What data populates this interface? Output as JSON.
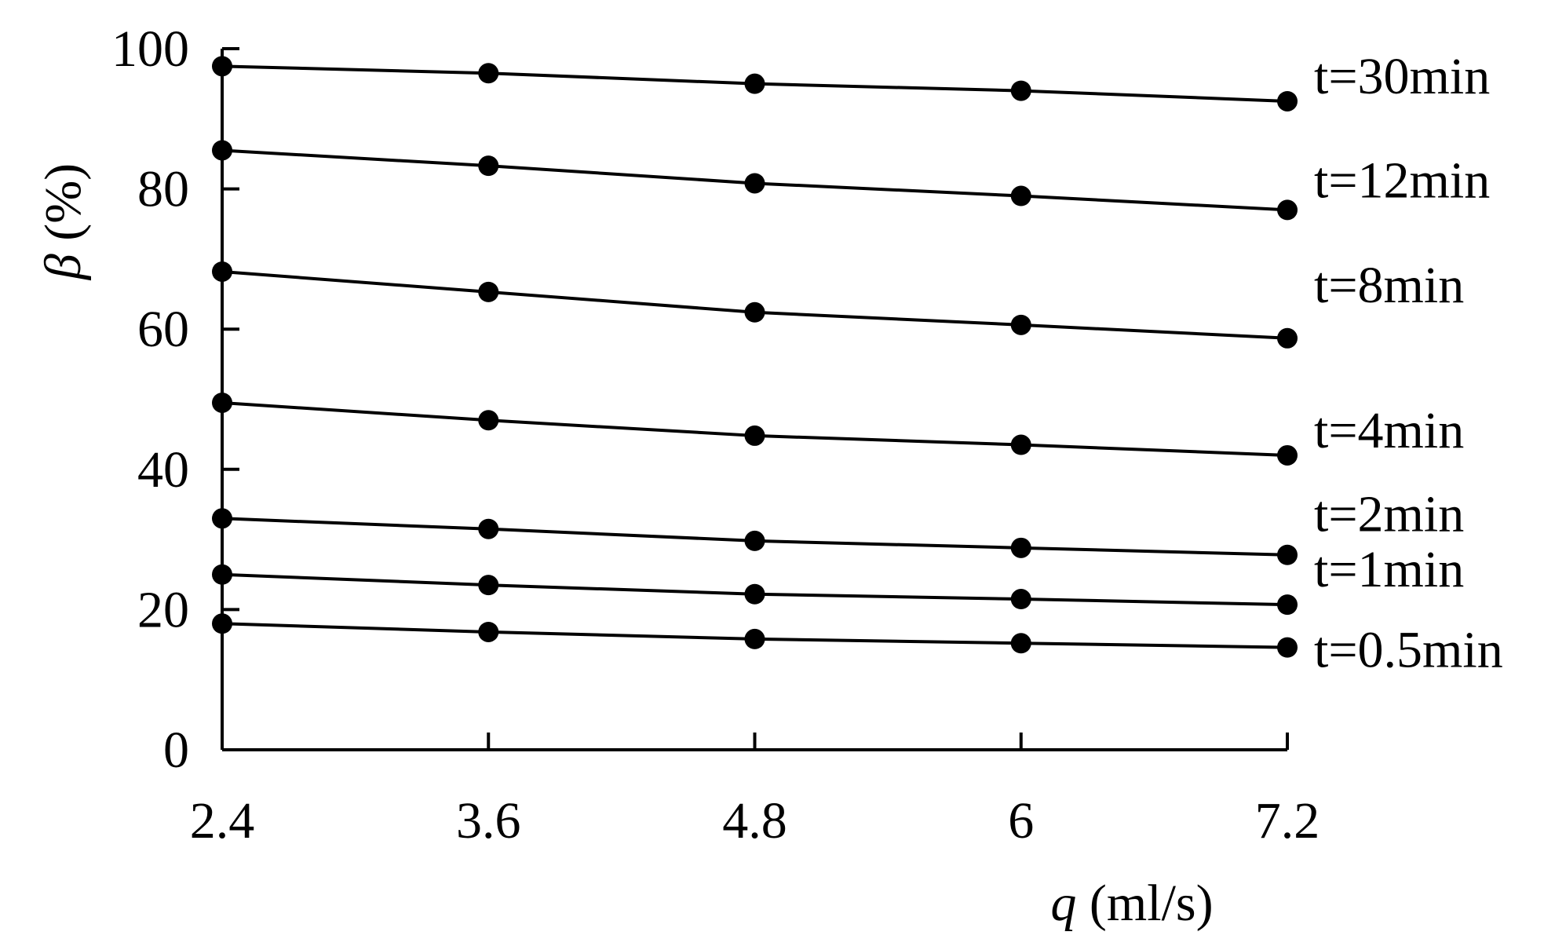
{
  "chart_data": {
    "type": "line",
    "x": [
      2.4,
      3.6,
      4.8,
      6,
      7.2
    ],
    "x_tick_labels": [
      "2.4",
      "3.6",
      "4.8",
      "6",
      "7.2"
    ],
    "y_tick_labels": [
      "0",
      "20",
      "40",
      "60",
      "80",
      "100"
    ],
    "y_ticks": [
      0,
      20,
      40,
      60,
      80,
      100
    ],
    "xlim": [
      2.4,
      7.2
    ],
    "ylim": [
      0,
      100
    ],
    "xlabel": {
      "symbol": "q",
      "unit": "(ml/s)"
    },
    "ylabel": {
      "symbol": "β",
      "unit": "(%)"
    },
    "grid": false,
    "legend": "series labels at right end of each line",
    "series": [
      {
        "name": "t=30min",
        "values": [
          97.5,
          96.5,
          95.0,
          94.0,
          92.5
        ]
      },
      {
        "name": "t=12min",
        "values": [
          85.5,
          83.3,
          80.8,
          79.0,
          77.0
        ]
      },
      {
        "name": "t=8min",
        "values": [
          68.2,
          65.3,
          62.4,
          60.6,
          58.7
        ]
      },
      {
        "name": "t=4min",
        "values": [
          49.5,
          47.0,
          44.8,
          43.5,
          42.0
        ]
      },
      {
        "name": "t=2min",
        "values": [
          33.0,
          31.5,
          29.8,
          28.8,
          27.8
        ]
      },
      {
        "name": "t=1min",
        "values": [
          25.0,
          23.5,
          22.2,
          21.5,
          20.7
        ]
      },
      {
        "name": "t=0.5min",
        "values": [
          18.0,
          16.8,
          15.8,
          15.2,
          14.6
        ]
      }
    ],
    "colors": {
      "line": "#000000",
      "marker": "#000000",
      "axis": "#000000"
    }
  }
}
